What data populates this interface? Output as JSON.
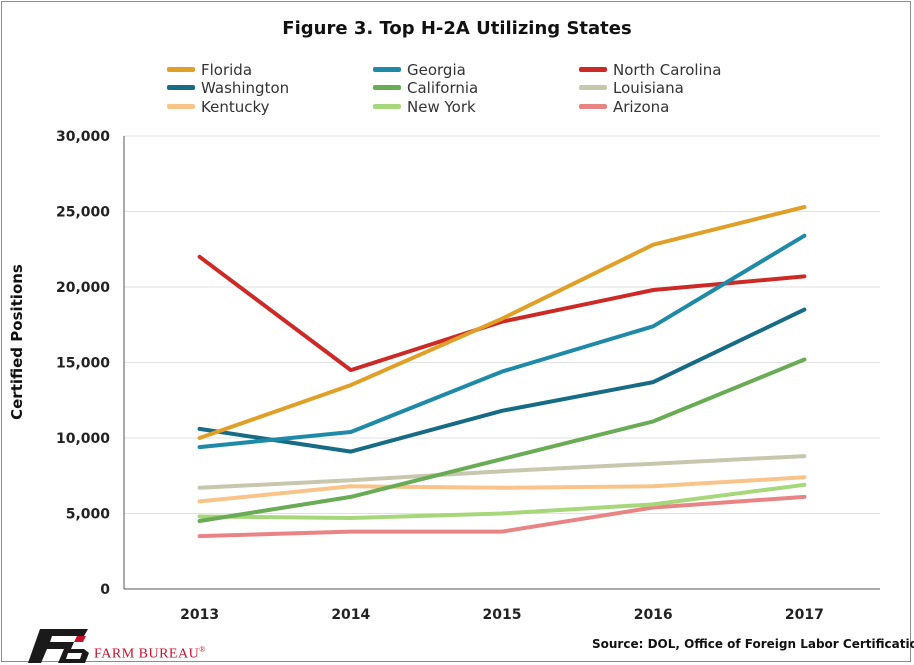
{
  "chart_data": {
    "type": "line",
    "title": "Figure 3. Top H-2A Utilizing States",
    "xlabel": "",
    "ylabel": "Certified Positions",
    "x": [
      "2013",
      "2014",
      "2015",
      "2016",
      "2017"
    ],
    "ylim": [
      0,
      30000
    ],
    "yticks": [
      0,
      5000,
      10000,
      15000,
      20000,
      25000,
      30000
    ],
    "ytick_labels": [
      "0",
      "5,000",
      "10,000",
      "15,000",
      "20,000",
      "25,000",
      "30,000"
    ],
    "grid": true,
    "legend_position": "top",
    "series": [
      {
        "name": "Florida",
        "color": "#e0a028",
        "values": [
          10000,
          13500,
          17900,
          22800,
          25300
        ]
      },
      {
        "name": "Georgia",
        "color": "#1f8aa8",
        "values": [
          9400,
          10400,
          14400,
          17400,
          23400
        ]
      },
      {
        "name": "North Carolina",
        "color": "#cc2a26",
        "values": [
          22000,
          14500,
          17700,
          19800,
          20700
        ]
      },
      {
        "name": "Washington",
        "color": "#176b85",
        "values": [
          10600,
          9100,
          11800,
          13700,
          18500
        ]
      },
      {
        "name": "California",
        "color": "#6aab55",
        "values": [
          4500,
          6100,
          8600,
          11100,
          15200
        ]
      },
      {
        "name": "Louisiana",
        "color": "#c7c7ae",
        "values": [
          6700,
          7200,
          7800,
          8300,
          8800
        ]
      },
      {
        "name": "Kentucky",
        "color": "#f8c48a",
        "values": [
          5800,
          6800,
          6700,
          6800,
          7400
        ]
      },
      {
        "name": "New York",
        "color": "#a7d77b",
        "values": [
          4800,
          4700,
          5000,
          5600,
          6900
        ]
      },
      {
        "name": "Arizona",
        "color": "#e88484",
        "values": [
          3500,
          3800,
          3800,
          5400,
          6100
        ]
      }
    ]
  },
  "footer": {
    "brand": "FARM BUREAU",
    "brand_mark": "®",
    "source": "Source: DOL, Office of Foreign Labor Certification"
  }
}
